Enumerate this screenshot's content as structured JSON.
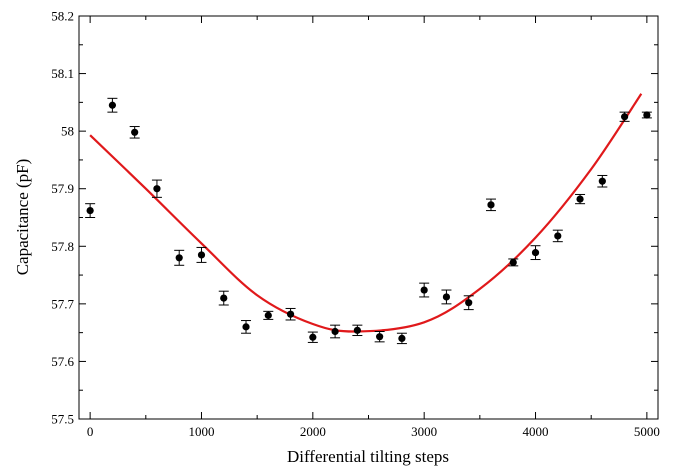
{
  "chart_data": {
    "type": "scatter",
    "title": "",
    "xlabel": "Differential tilting steps",
    "ylabel": "Capacitance (pF)",
    "xlim": [
      -100,
      5100
    ],
    "ylim": [
      57.5,
      58.2
    ],
    "xticks": [
      0,
      1000,
      2000,
      3000,
      4000,
      5000
    ],
    "xtick_labels": [
      "0",
      "1000",
      "2000",
      "3000",
      "4000",
      "5000"
    ],
    "yticks": [
      57.5,
      57.6,
      57.7,
      57.8,
      57.9,
      58.0,
      58.1,
      58.2
    ],
    "ytick_labels": [
      "57.5",
      "57.6",
      "57.7",
      "57.8",
      "57.9",
      "58",
      "58.1",
      "58.2"
    ],
    "grid": false,
    "series": [
      {
        "kind": "points_with_error_bars",
        "color": "#000000",
        "points": [
          {
            "x": 0,
            "y": 57.862,
            "err": 0.012
          },
          {
            "x": 200,
            "y": 58.045,
            "err": 0.012
          },
          {
            "x": 400,
            "y": 57.998,
            "err": 0.01
          },
          {
            "x": 600,
            "y": 57.9,
            "err": 0.015
          },
          {
            "x": 800,
            "y": 57.78,
            "err": 0.013
          },
          {
            "x": 1000,
            "y": 57.785,
            "err": 0.013
          },
          {
            "x": 1200,
            "y": 57.71,
            "err": 0.012
          },
          {
            "x": 1400,
            "y": 57.66,
            "err": 0.011
          },
          {
            "x": 1600,
            "y": 57.68,
            "err": 0.007
          },
          {
            "x": 1800,
            "y": 57.682,
            "err": 0.01
          },
          {
            "x": 2000,
            "y": 57.642,
            "err": 0.009
          },
          {
            "x": 2200,
            "y": 57.652,
            "err": 0.011
          },
          {
            "x": 2400,
            "y": 57.654,
            "err": 0.009
          },
          {
            "x": 2600,
            "y": 57.643,
            "err": 0.009
          },
          {
            "x": 2800,
            "y": 57.64,
            "err": 0.009
          },
          {
            "x": 3000,
            "y": 57.724,
            "err": 0.012
          },
          {
            "x": 3200,
            "y": 57.712,
            "err": 0.012
          },
          {
            "x": 3400,
            "y": 57.702,
            "err": 0.012
          },
          {
            "x": 3600,
            "y": 57.872,
            "err": 0.01
          },
          {
            "x": 3800,
            "y": 57.772,
            "err": 0.006
          },
          {
            "x": 4000,
            "y": 57.789,
            "err": 0.012
          },
          {
            "x": 4200,
            "y": 57.818,
            "err": 0.01
          },
          {
            "x": 4400,
            "y": 57.882,
            "err": 0.008
          },
          {
            "x": 4600,
            "y": 57.913,
            "err": 0.01
          },
          {
            "x": 4800,
            "y": 58.025,
            "err": 0.008
          },
          {
            "x": 5000,
            "y": 58.028,
            "err": 0.005
          }
        ]
      },
      {
        "kind": "fit_curve",
        "color": "#e0191b",
        "x": [
          0,
          500,
          1000,
          1500,
          2000,
          2400,
          3000,
          3500,
          4000,
          4500,
          4950
        ],
        "y": [
          57.993,
          57.9,
          57.805,
          57.715,
          57.665,
          57.652,
          57.668,
          57.726,
          57.815,
          57.934,
          58.065
        ]
      }
    ]
  }
}
